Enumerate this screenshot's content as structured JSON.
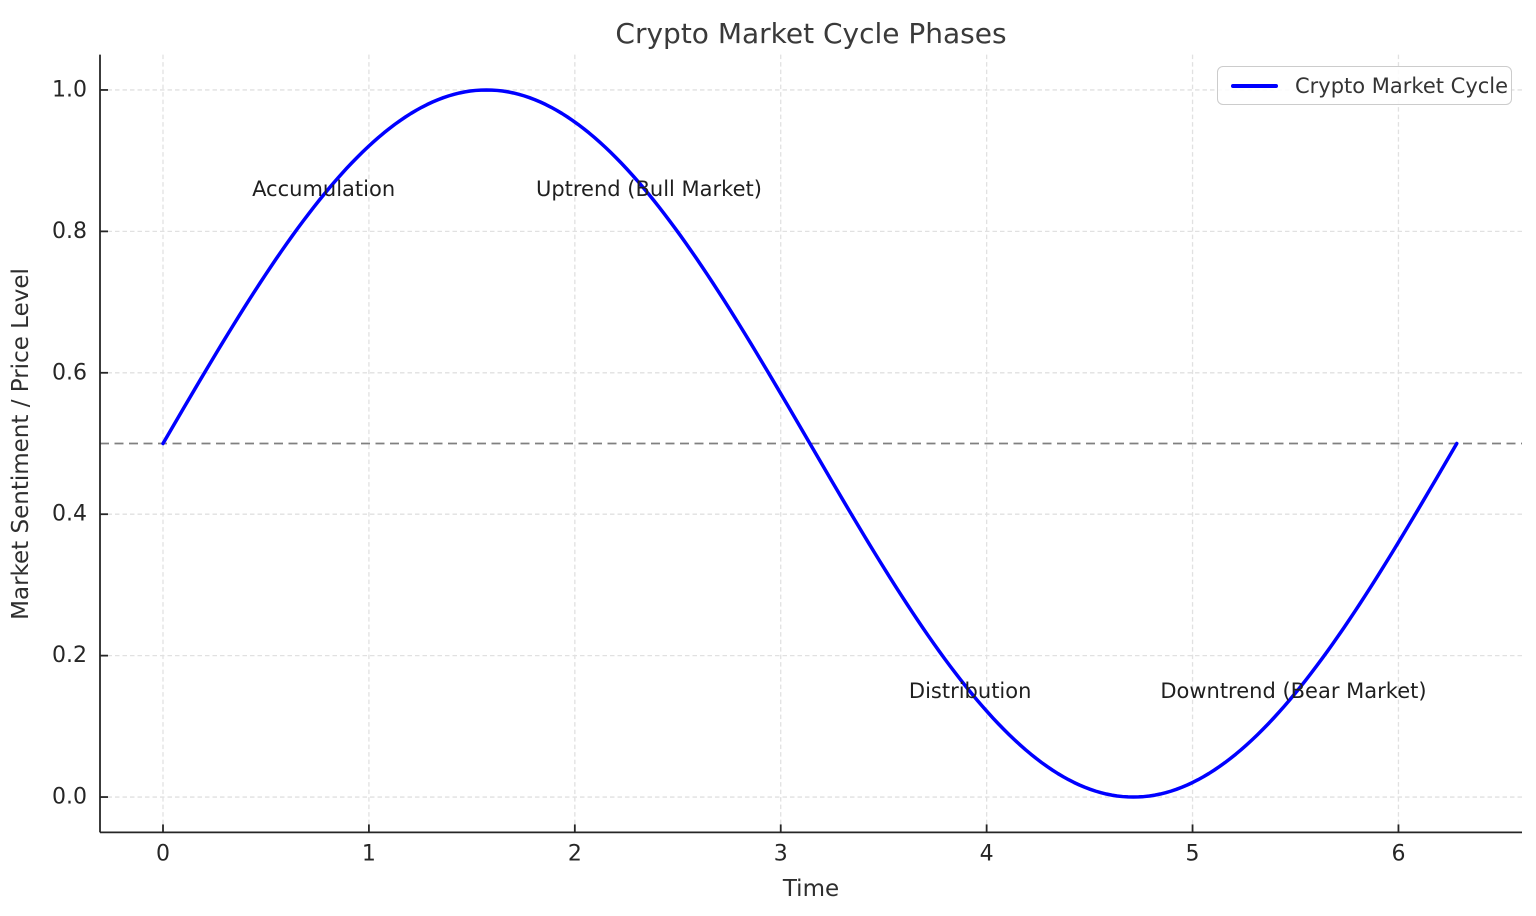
{
  "figure": {
    "title": "Crypto Market Cycle Phases",
    "xlabel": "Time",
    "ylabel": "Market Sentiment / Price Level"
  },
  "legend": {
    "label": "Crypto Market Cycle",
    "swatch_color": "#0000ff",
    "position": "upper right"
  },
  "colors": {
    "curve": "#0000ff",
    "reference_line": "#808080",
    "grid": "#e1e1e1",
    "axis": "#262626",
    "text": "#2e2e2e"
  },
  "chart_data": {
    "type": "line",
    "title": "Crypto Market Cycle Phases",
    "xlabel": "Time",
    "ylabel": "Market Sentiment / Price Level",
    "xlim": [
      -0.306,
      6.6
    ],
    "ylim": [
      -0.05,
      1.05
    ],
    "x_ticks": [
      0,
      1,
      2,
      3,
      4,
      5,
      6
    ],
    "x_tick_labels": [
      "0",
      "1",
      "2",
      "3",
      "4",
      "5",
      "6"
    ],
    "y_ticks": [
      0,
      0.2,
      0.4,
      0.6,
      0.8,
      1
    ],
    "y_tick_labels": [
      "0.0",
      "0.2",
      "0.4",
      "0.6",
      "0.8",
      "1.0"
    ],
    "grid": true,
    "grid_style": "dashed",
    "legend_position": "upper right",
    "series": [
      {
        "name": "Crypto Market Cycle",
        "color": "#0000ff",
        "line_width": 3.5,
        "formula": "y = 0.5 + 0.5*sin(x)",
        "offset": 0.5,
        "amplitude": 0.5,
        "x_start": 0,
        "x_end": 6.2832,
        "samples": 240,
        "key_points": [
          [
            0,
            0.5
          ],
          [
            1.5708,
            1.0
          ],
          [
            3.1416,
            0.5
          ],
          [
            4.7124,
            0.0
          ],
          [
            6.2832,
            0.5
          ]
        ]
      }
    ],
    "reference_line": {
      "y": 0.5,
      "color": "#808080",
      "style": "dashed"
    },
    "annotations": [
      {
        "text": "Accumulation",
        "x": 0.78,
        "y": 0.86
      },
      {
        "text": "Uptrend (Bull Market)",
        "x": 2.36,
        "y": 0.86
      },
      {
        "text": "Distribution",
        "x": 3.92,
        "y": 0.15
      },
      {
        "text": "Downtrend (Bear Market)",
        "x": 5.49,
        "y": 0.15
      }
    ]
  }
}
